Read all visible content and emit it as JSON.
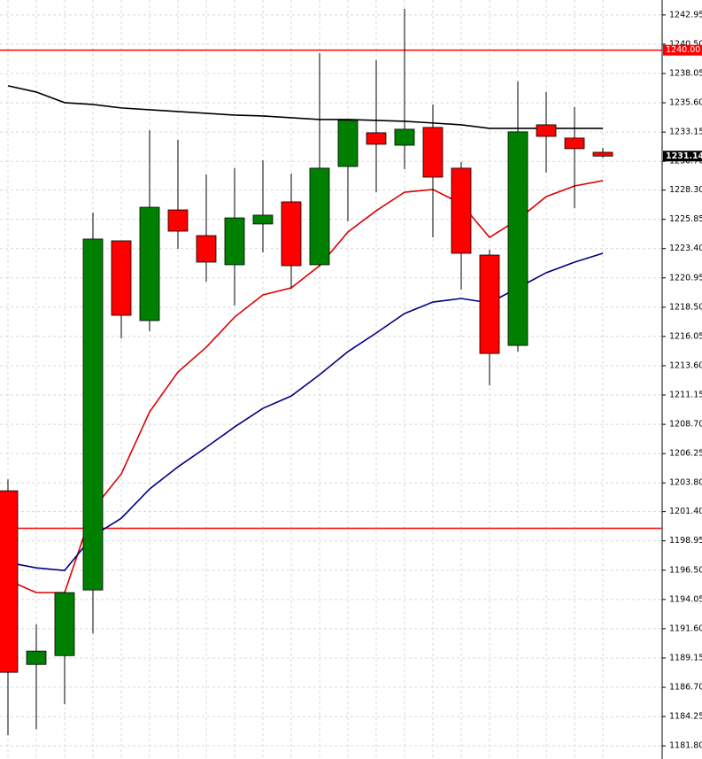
{
  "chart_data": {
    "type": "candlestick",
    "up_color": "#008000",
    "down_color": "#ff0000",
    "grid": true,
    "ylim": [
      1180.7,
      1244.2
    ],
    "yticks": [
      1242.95,
      {
        "value": 1240.5,
        "label": "1240.50"
      },
      1238.05,
      {
        "value": 1235.6,
        "label": "1235.60"
      },
      1233.15,
      {
        "value": 1230.7,
        "label": "1230.70"
      },
      {
        "value": 1228.3,
        "label": "1228.30"
      },
      1225.85,
      {
        "value": 1223.4,
        "label": "1223.40"
      },
      1220.95,
      {
        "value": 1218.5,
        "label": "1218.50"
      },
      1216.05,
      {
        "value": 1213.6,
        "label": "1213.60"
      },
      1211.15,
      {
        "value": 1208.7,
        "label": "1208.70"
      },
      1206.25,
      {
        "value": 1203.8,
        "label": "1203.80"
      },
      {
        "value": 1201.4,
        "label": "1201.40"
      },
      1198.95,
      {
        "value": 1196.5,
        "label": "1196.50"
      },
      1194.05,
      {
        "value": 1191.6,
        "label": "1191.60"
      },
      1189.15,
      {
        "value": 1186.7,
        "label": "1186.70"
      },
      1184.25,
      {
        "value": 1181.8,
        "label": "1181.80"
      }
    ],
    "open": [
      1203.14,
      1188.61,
      1189.35,
      1194.84,
      1224.05,
      1217.38,
      1226.64,
      1224.49,
      1222.05,
      1225.46,
      1227.31,
      1222.05,
      1230.27,
      1233.09,
      1232.05,
      1233.54,
      1230.13,
      1222.86,
      1215.3,
      1233.76,
      1232.65,
      1231.46
    ],
    "high": [
      1204.1,
      1191.95,
      1194.7,
      1226.42,
      1224.05,
      1233.31,
      1232.5,
      1229.61,
      1230.13,
      1230.79,
      1229.68,
      1239.76,
      1234.13,
      1239.17,
      1243.47,
      1235.46,
      1230.64,
      1223.31,
      1237.39,
      1236.5,
      1235.24,
      1231.83
    ],
    "low": [
      1182.7,
      1183.2,
      1185.28,
      1191.21,
      1215.89,
      1216.49,
      1223.38,
      1220.64,
      1218.64,
      1223.08,
      1220.04,
      1221.9,
      1225.68,
      1228.12,
      1230.05,
      1224.34,
      1219.97,
      1211.96,
      1214.78,
      1229.76,
      1226.79,
      1231.0
    ],
    "close": [
      1187.95,
      1189.73,
      1194.62,
      1224.2,
      1217.82,
      1226.86,
      1224.86,
      1222.27,
      1225.97,
      1226.2,
      1221.97,
      1230.13,
      1234.13,
      1232.13,
      1233.39,
      1229.38,
      1223.01,
      1214.63,
      1233.17,
      1232.79,
      1231.76,
      1231.14
    ],
    "overlays": [
      {
        "color": "#000000",
        "values": [
          1237.02,
          1236.5,
          1235.61,
          1235.46,
          1235.17,
          1235.02,
          1234.87,
          1234.72,
          1234.57,
          1234.5,
          1234.35,
          1234.2,
          1234.2,
          1234.13,
          1234.05,
          1233.91,
          1233.76,
          1233.46,
          1233.46,
          1233.46,
          1233.46,
          1233.46
        ]
      },
      {
        "color": "#dd0000",
        "values": [
          1195.66,
          1194.62,
          1194.62,
          1201.59,
          1204.55,
          1209.74,
          1213.08,
          1215.15,
          1217.67,
          1219.53,
          1220.12,
          1221.97,
          1224.79,
          1226.57,
          1228.12,
          1228.35,
          1227.16,
          1224.34,
          1225.83,
          1227.75,
          1228.64,
          1229.09
        ]
      },
      {
        "color": "#000080",
        "values": [
          1197.14,
          1196.69,
          1196.47,
          1199.36,
          1200.84,
          1203.29,
          1205.14,
          1206.78,
          1208.48,
          1210.04,
          1211.07,
          1212.85,
          1214.78,
          1216.34,
          1217.97,
          1218.93,
          1219.23,
          1218.86,
          1220.12,
          1221.38,
          1222.27,
          1223.01
        ]
      }
    ],
    "hlines": [
      {
        "value": 1240,
        "label": "1240.00",
        "color": "#ff0000"
      },
      {
        "value": 1200,
        "color": "#ff0000"
      }
    ],
    "last_price": {
      "value": 1231.14,
      "label": "1231.14",
      "color": "#000000"
    }
  }
}
